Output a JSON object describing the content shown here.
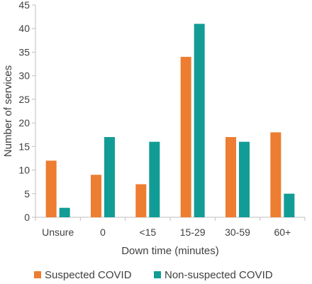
{
  "chart_data": {
    "type": "bar",
    "categories": [
      "Unsure",
      "0",
      "<15",
      "15-29",
      "30-59",
      "60+"
    ],
    "series": [
      {
        "name": "Suspected COVID",
        "values": [
          12,
          9,
          7,
          34,
          17,
          18
        ],
        "color": "#ed7d31"
      },
      {
        "name": "Non-suspected COVID",
        "values": [
          2,
          17,
          16,
          41,
          16,
          5
        ],
        "color": "#129c96"
      }
    ],
    "xlabel": "Down time (minutes)",
    "ylabel": "Number of services",
    "ylim": [
      0,
      45
    ],
    "yticks": [
      0,
      5,
      10,
      15,
      20,
      25,
      30,
      35,
      40,
      45
    ],
    "grid": false,
    "legend": "bottom"
  }
}
